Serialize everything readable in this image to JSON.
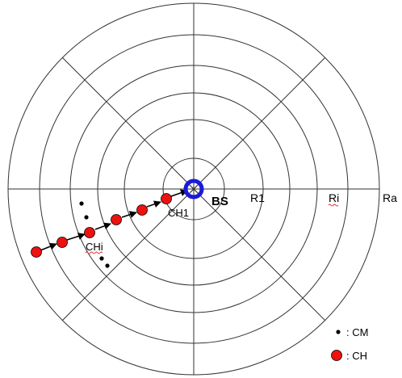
{
  "diagram": {
    "base_station": "BS",
    "ring_labels": {
      "r1": "R1",
      "ri": "Ri",
      "ra": "Ra"
    },
    "cluster_head_labels": {
      "first": "CH1",
      "intermediate": "CHi"
    },
    "legend": {
      "cm": ": CM",
      "ch": ": CH"
    },
    "colors": {
      "cluster_head_fill": "#ee1111",
      "cluster_member": "#000000",
      "base_station_ring": "#1a1ad6",
      "grid_lines": "#333333"
    }
  }
}
